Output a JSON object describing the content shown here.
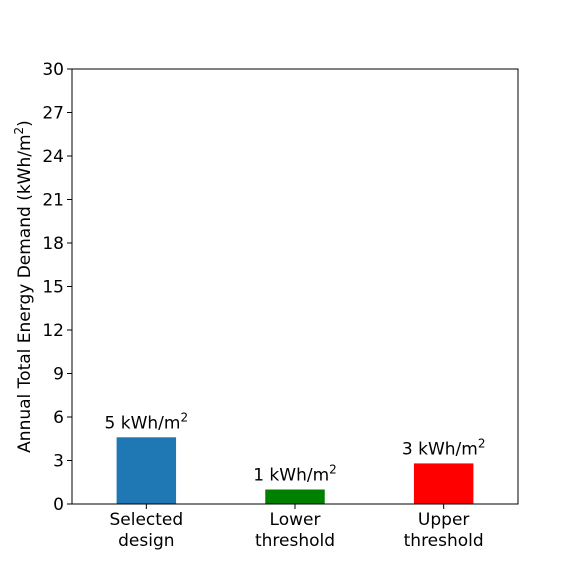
{
  "chart_data": {
    "type": "bar",
    "categories": [
      [
        "Selected",
        "design"
      ],
      [
        "Lower",
        "threshold"
      ],
      [
        "Upper",
        "threshold"
      ]
    ],
    "values": [
      4.6,
      1.0,
      2.8
    ],
    "colors": [
      "#1f77b4",
      "#008000",
      "#ff0000"
    ],
    "data_labels": [
      {
        "text": "5 kWh/m",
        "sup": "2"
      },
      {
        "text": "1 kWh/m",
        "sup": "2"
      },
      {
        "text": "3 kWh/m",
        "sup": "2"
      }
    ],
    "ylabel": {
      "text": "Annual Total Energy Demand (kWh/m",
      "sup": "2",
      "tail": ")"
    },
    "ylim": [
      0,
      30
    ],
    "yticks": [
      0,
      3,
      6,
      9,
      12,
      15,
      18,
      21,
      24,
      27,
      30
    ],
    "xlim": [
      -0.5,
      2.5
    ],
    "grid": false,
    "legend": "none"
  }
}
